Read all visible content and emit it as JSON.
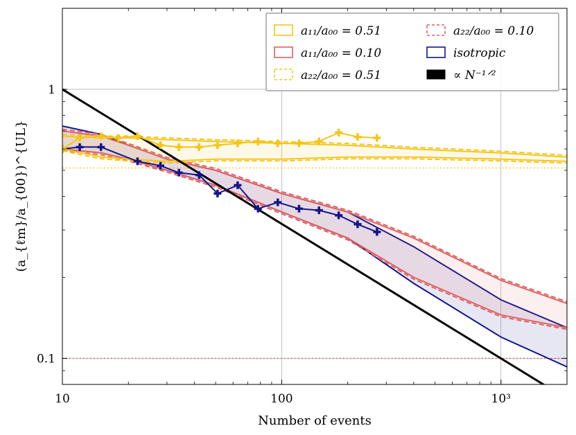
{
  "chart_data": {
    "type": "line",
    "title": "",
    "xlabel": "Number of events",
    "ylabel": "(a_{ℓm}/a_{00})^{UL}",
    "xscale": "log",
    "yscale": "log",
    "xlim": [
      10,
      2000
    ],
    "ylim": [
      0.08,
      2.0
    ],
    "x_ticks": [
      {
        "value": 10,
        "label": "10"
      },
      {
        "value": 100,
        "label": "100"
      },
      {
        "value": 1000,
        "label": "10³"
      }
    ],
    "y_ticks": [
      {
        "value": 0.1,
        "label": "0.1"
      },
      {
        "value": 1,
        "label": "1"
      }
    ],
    "grid": true,
    "legend_position": "top-right",
    "colors": {
      "gold": "#f5c518",
      "red": "#e06060",
      "navy": "#14148c",
      "black": "#000000"
    },
    "legend": [
      {
        "label": "a₁₁/a₀₀ = 0.51",
        "style": "solid-box",
        "color": "#f5c518"
      },
      {
        "label": "a₁₁/a₀₀ = 0.10",
        "style": "solid-box",
        "color": "#e06060"
      },
      {
        "label": "a₂₂/a₀₀ = 0.51",
        "style": "dashed-box",
        "color": "#f5c518"
      },
      {
        "label": "a₂₂/a₀₀ = 0.10",
        "style": "dashed-box",
        "color": "#e06060"
      },
      {
        "label": "isotropic",
        "style": "solid-box",
        "color": "#14148c"
      },
      {
        "label": "∝ N⁻¹ᐟ²",
        "style": "filled",
        "color": "#000000"
      }
    ],
    "reference_lines": [
      {
        "name": "a11=0.51 true value",
        "y": 0.51,
        "color": "#f5c518",
        "style": "dotted"
      },
      {
        "name": "a11=0.10 true value",
        "y": 0.1,
        "color": "#e06060",
        "style": "dotted"
      }
    ],
    "power_law": {
      "name": "∝ N^-1/2",
      "x": [
        10,
        1600
      ],
      "y": [
        1.0,
        0.079
      ]
    },
    "bands": [
      {
        "name": "isotropic",
        "color": "#14148c",
        "x": [
          10,
          15,
          20,
          30,
          50,
          100,
          200,
          400,
          1000,
          2000
        ],
        "upper": [
          0.73,
          0.68,
          0.62,
          0.55,
          0.5,
          0.41,
          0.35,
          0.26,
          0.165,
          0.13
        ],
        "lower": [
          0.6,
          0.58,
          0.55,
          0.5,
          0.44,
          0.35,
          0.28,
          0.19,
          0.12,
          0.093
        ]
      },
      {
        "name": "a11/a00 = 0.10",
        "color": "#e06060",
        "x": [
          10,
          15,
          20,
          30,
          50,
          100,
          200,
          400,
          1000,
          2000
        ],
        "upper": [
          0.7,
          0.67,
          0.62,
          0.55,
          0.5,
          0.41,
          0.35,
          0.28,
          0.195,
          0.16
        ],
        "lower": [
          0.6,
          0.58,
          0.55,
          0.5,
          0.44,
          0.35,
          0.28,
          0.2,
          0.145,
          0.13
        ]
      },
      {
        "name": "a11/a00 = 0.51",
        "color": "#f5c518",
        "x": [
          10,
          15,
          20,
          30,
          50,
          100,
          200,
          400,
          1000,
          2000
        ],
        "upper": [
          0.67,
          0.66,
          0.66,
          0.65,
          0.64,
          0.63,
          0.62,
          0.6,
          0.58,
          0.56
        ],
        "lower": [
          0.6,
          0.56,
          0.55,
          0.54,
          0.55,
          0.55,
          0.56,
          0.56,
          0.55,
          0.54
        ]
      }
    ],
    "series": [
      {
        "name": "isotropic (simulated)",
        "color": "#14148c",
        "marker": "plus",
        "x": [
          10,
          12,
          15,
          22,
          28,
          34,
          42,
          51,
          63,
          78,
          96,
          120,
          148,
          182,
          222,
          272
        ],
        "y": [
          0.6,
          0.61,
          0.61,
          0.54,
          0.52,
          0.49,
          0.48,
          0.41,
          0.44,
          0.36,
          0.38,
          0.36,
          0.355,
          0.34,
          0.315,
          0.295
        ]
      },
      {
        "name": "a11/a00 = 0.51 (simulated)",
        "color": "#f5c518",
        "marker": "plus",
        "x": [
          10,
          12,
          15,
          18,
          22,
          28,
          34,
          42,
          51,
          63,
          78,
          96,
          120,
          148,
          182,
          222,
          272
        ],
        "y": [
          0.6,
          0.66,
          0.67,
          0.66,
          0.67,
          0.62,
          0.61,
          0.61,
          0.62,
          0.63,
          0.64,
          0.63,
          0.63,
          0.64,
          0.69,
          0.665,
          0.66
        ]
      }
    ]
  }
}
